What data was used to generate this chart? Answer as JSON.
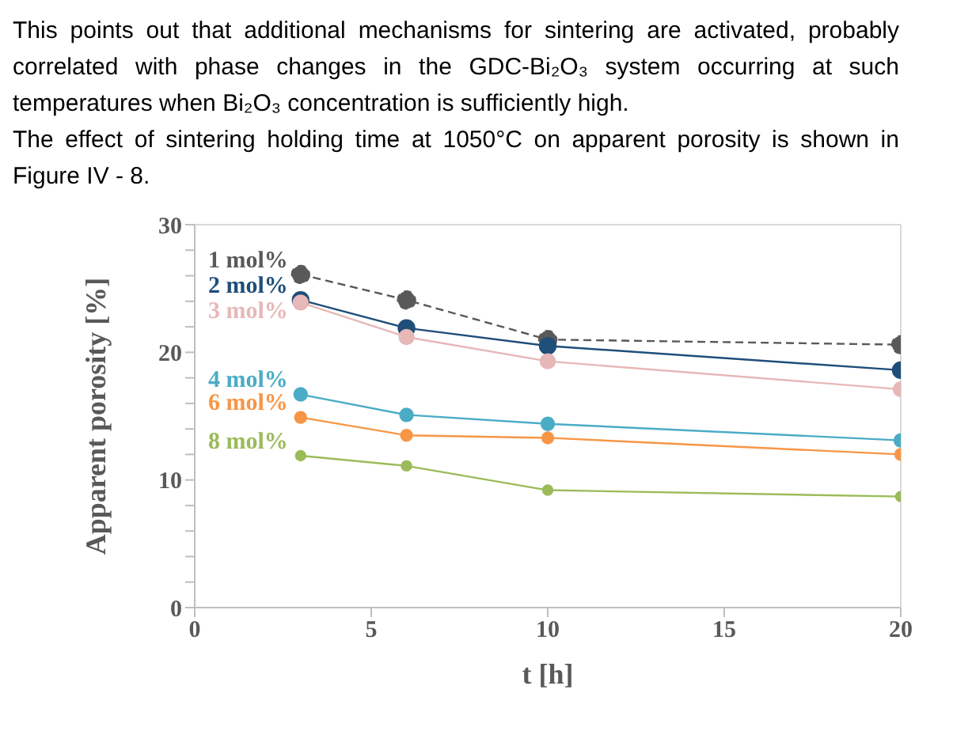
{
  "chart_data": {
    "type": "line",
    "annotations": [
      "This points out that additional mechanisms for sintering are activated, probably correlated with phase changes in the GDC-Bi₂O₃ system occurring at such temperatures when Bi₂O₃ concentration is sufficiently high.",
      "The effect of sintering holding time at 1050°C on apparent porosity is shown in Figure IV - 8."
    ],
    "xlabel": "t [h]",
    "ylabel": "Apparent porosity [%]",
    "x": [
      3,
      6,
      10,
      20
    ],
    "xlim": [
      0,
      20
    ],
    "xticks": [
      0,
      5,
      10,
      15,
      20
    ],
    "ylim": [
      0,
      30
    ],
    "yticks": [
      0,
      {
        "value": 2,
        "label": null
      },
      {
        "value": 4,
        "label": null
      },
      {
        "value": 6,
        "label": null
      },
      {
        "value": 8,
        "label": null
      },
      10,
      {
        "value": 12,
        "label": null
      },
      {
        "value": 14,
        "label": null
      },
      {
        "value": 16,
        "label": null
      },
      {
        "value": 18,
        "label": null
      },
      20,
      {
        "value": 22,
        "label": null
      },
      {
        "value": 24,
        "label": null
      },
      {
        "value": 26,
        "label": null
      },
      {
        "value": 28,
        "label": null
      },
      30
    ],
    "grid": false,
    "legend": false,
    "marker": "circle",
    "series": [
      {
        "name": "1 mol%",
        "color": "#595959",
        "line_style": "dashed",
        "values": [
          26.1,
          24.1,
          21.0,
          20.6
        ]
      },
      {
        "name": "2 mol%",
        "color": "#1f4e79",
        "values": [
          24.1,
          21.9,
          20.5,
          18.6
        ]
      },
      {
        "name": "3 mol%",
        "color": "#e6b8b7",
        "values": [
          23.9,
          21.2,
          19.3,
          17.1
        ]
      },
      {
        "name": "4 mol%",
        "color": "#4bacc6",
        "values": [
          16.7,
          15.1,
          14.4,
          13.1
        ]
      },
      {
        "name": "6 mol%",
        "color": "#f79646",
        "values": [
          14.9,
          13.5,
          13.3,
          12.0
        ]
      },
      {
        "name": "8 mol%",
        "color": "#9bbb59",
        "values": [
          11.9,
          11.1,
          9.2,
          8.7
        ]
      }
    ]
  }
}
